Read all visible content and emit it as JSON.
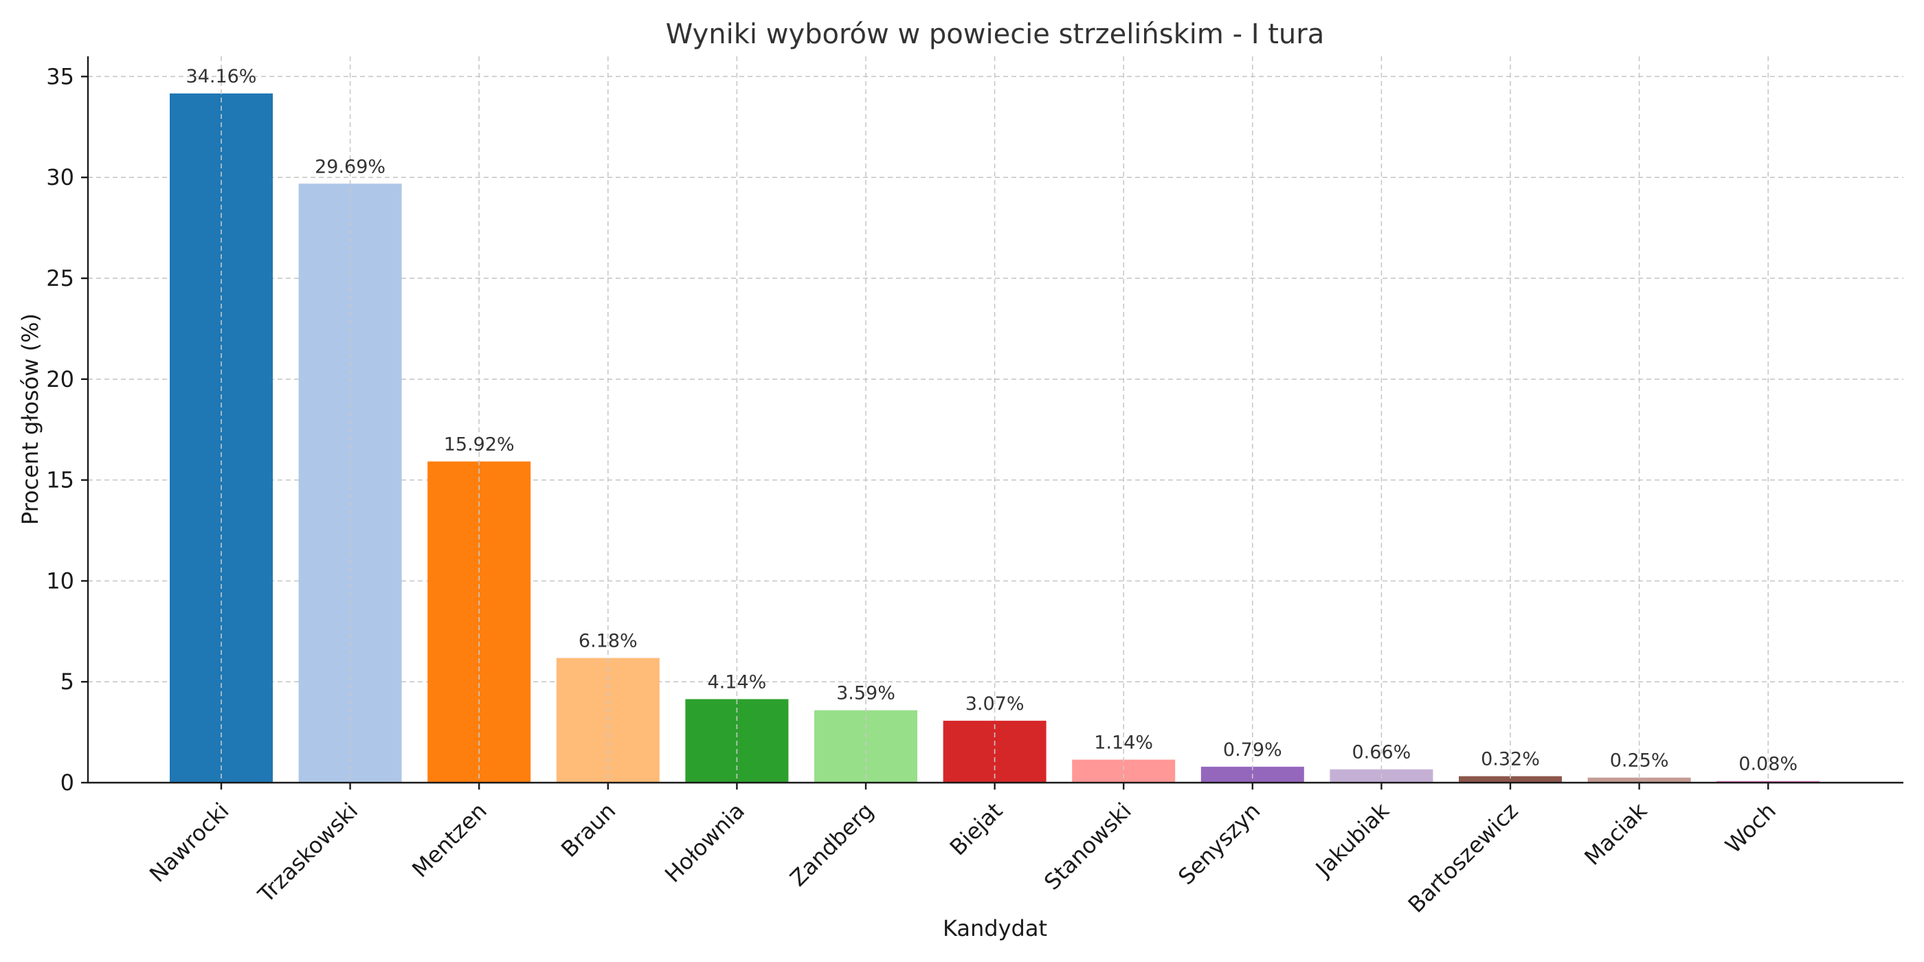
{
  "chart_data": {
    "type": "bar",
    "title": "Wyniki wyborów w powiecie strzelińskim - I tura",
    "xlabel": "Kandydat",
    "ylabel": "Procent głosów (%)",
    "ylim": [
      0,
      36
    ],
    "yticks": [
      0,
      5,
      10,
      15,
      20,
      25,
      30,
      35
    ],
    "grid": true,
    "categories": [
      "Nawrocki",
      "Trzaskowski",
      "Mentzen",
      "Braun",
      "Hołownia",
      "Zandberg",
      "Biejat",
      "Stanowski",
      "Senyszyn",
      "Jakubiak",
      "Bartoszewicz",
      "Maciak",
      "Woch"
    ],
    "values": [
      34.16,
      29.69,
      15.92,
      6.18,
      4.14,
      3.59,
      3.07,
      1.14,
      0.79,
      0.66,
      0.32,
      0.25,
      0.08
    ],
    "data_labels": [
      "34.16%",
      "29.69%",
      "15.92%",
      "6.18%",
      "4.14%",
      "3.59%",
      "3.07%",
      "1.14%",
      "0.79%",
      "0.66%",
      "0.32%",
      "0.25%",
      "0.08%"
    ],
    "colors": [
      "#1f77b4",
      "#aec7e8",
      "#ff7f0e",
      "#ffbb78",
      "#2ca02c",
      "#98df8a",
      "#d62728",
      "#ff9896",
      "#9467bd",
      "#c5b0d5",
      "#8c564b",
      "#c49c94",
      "#e377c2"
    ]
  }
}
